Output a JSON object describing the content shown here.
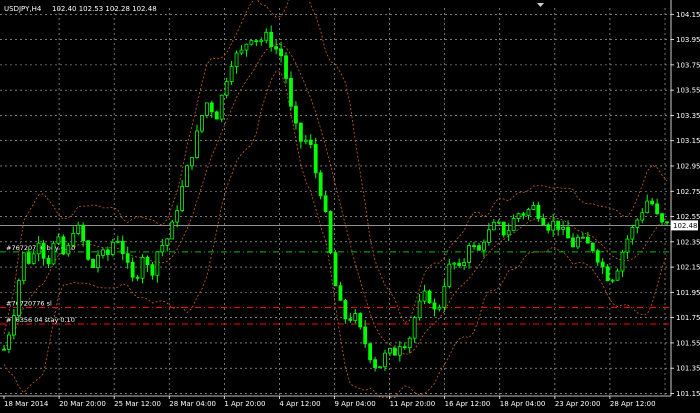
{
  "header": {
    "symbol": "USDJPY,H4",
    "ohlc": "102.40 102.53 102.28 102.48"
  },
  "colors": {
    "background": "#000000",
    "grid": "#bfbfbf",
    "candle": "#00ff00",
    "bands": "#c8641e",
    "bid_line": "#c0c0c0",
    "buy_order": "#00c000",
    "stop_order": "#ff0000",
    "current_price_bg": "#ffffff"
  },
  "icons": {
    "scroll_marker": "triangle-down-icon"
  },
  "orders": [
    {
      "label": "#76720776 buy 0.10",
      "price": 102.27,
      "kind": "buy"
    },
    {
      "label": "#76720776 sl",
      "price": 101.83,
      "kind": "sl"
    },
    {
      "label": "#76356 04 stay 0.10",
      "price": 101.7,
      "kind": "stop"
    }
  ],
  "current_price": {
    "label": "102.48",
    "value": 102.48
  },
  "chart_data": {
    "type": "candlestick",
    "title": "USDJPY,H4",
    "ylim": [
      101.13,
      104.2
    ],
    "y_ticks": [
      "104.15",
      "103.95",
      "103.75",
      "103.55",
      "103.35",
      "103.15",
      "102.95",
      "102.75",
      "102.55",
      "102.35",
      "102.15",
      "101.95",
      "101.75",
      "101.55",
      "101.35",
      "101.15"
    ],
    "x_ticks": [
      "18 Mar 2014",
      "20 Mar 20:00",
      "25 Mar 12:00",
      "28 Mar 04:00",
      "1 Apr 20:00",
      "4 Apr 12:00",
      "9 Apr 04:00",
      "11 Apr 20:00",
      "16 Apr 12:00",
      "18 Apr 04:00",
      "23 Apr 20:00",
      "28 Apr 12:00"
    ],
    "close_path": [
      [
        0,
        101.5
      ],
      [
        3,
        101.6
      ],
      [
        6,
        101.7
      ],
      [
        10,
        101.9
      ],
      [
        14,
        102.2
      ],
      [
        18,
        102.3
      ],
      [
        22,
        102.1
      ],
      [
        26,
        102.4
      ],
      [
        30,
        102.35
      ],
      [
        34,
        102.15
      ],
      [
        38,
        102.25
      ],
      [
        42,
        102.4
      ],
      [
        46,
        102.3
      ],
      [
        50,
        102.2
      ],
      [
        54,
        102.4
      ],
      [
        58,
        102.5
      ],
      [
        62,
        102.4
      ],
      [
        66,
        102.3
      ],
      [
        70,
        102.1
      ],
      [
        74,
        102.2
      ],
      [
        78,
        102.3
      ],
      [
        82,
        102.2
      ],
      [
        86,
        102.3
      ],
      [
        90,
        102.4
      ],
      [
        94,
        102.35
      ],
      [
        98,
        102.2
      ],
      [
        102,
        102.1
      ],
      [
        106,
        102.0
      ],
      [
        110,
        102.2
      ],
      [
        114,
        102.3
      ],
      [
        118,
        102.0
      ],
      [
        122,
        102.25
      ],
      [
        126,
        102.3
      ],
      [
        130,
        102.35
      ],
      [
        134,
        102.4
      ],
      [
        138,
        102.55
      ],
      [
        142,
        102.7
      ],
      [
        146,
        102.85
      ],
      [
        150,
        103.0
      ],
      [
        154,
        103.1
      ],
      [
        158,
        103.3
      ],
      [
        162,
        103.4
      ],
      [
        166,
        103.5
      ],
      [
        170,
        103.3
      ],
      [
        174,
        103.4
      ],
      [
        178,
        103.6
      ],
      [
        182,
        103.7
      ],
      [
        186,
        103.85
      ],
      [
        190,
        103.8
      ],
      [
        194,
        103.9
      ],
      [
        198,
        103.95
      ],
      [
        202,
        104.0
      ],
      [
        206,
        103.9
      ],
      [
        210,
        104.0
      ],
      [
        214,
        103.95
      ],
      [
        218,
        103.9
      ],
      [
        222,
        103.85
      ],
      [
        226,
        103.8
      ],
      [
        230,
        103.5
      ],
      [
        234,
        103.3
      ],
      [
        238,
        103.2
      ],
      [
        242,
        103.1
      ],
      [
        246,
        103.2
      ],
      [
        250,
        103.0
      ],
      [
        254,
        102.8
      ],
      [
        258,
        102.7
      ],
      [
        262,
        102.4
      ],
      [
        266,
        102.1
      ],
      [
        270,
        101.9
      ],
      [
        274,
        101.8
      ],
      [
        278,
        101.7
      ],
      [
        282,
        101.8
      ],
      [
        286,
        101.7
      ],
      [
        290,
        101.6
      ],
      [
        294,
        101.5
      ],
      [
        298,
        101.4
      ],
      [
        302,
        101.35
      ],
      [
        306,
        101.4
      ],
      [
        310,
        101.5
      ],
      [
        314,
        101.45
      ],
      [
        318,
        101.5
      ],
      [
        322,
        101.6
      ],
      [
        326,
        101.5
      ],
      [
        330,
        101.7
      ],
      [
        334,
        101.8
      ],
      [
        338,
        101.9
      ],
      [
        342,
        101.95
      ],
      [
        346,
        101.85
      ],
      [
        350,
        101.75
      ],
      [
        354,
        101.95
      ],
      [
        358,
        102.1
      ],
      [
        362,
        102.2
      ],
      [
        366,
        102.15
      ],
      [
        370,
        102.1
      ],
      [
        374,
        102.3
      ],
      [
        378,
        102.4
      ],
      [
        382,
        102.2
      ],
      [
        386,
        102.35
      ],
      [
        390,
        102.4
      ],
      [
        394,
        102.45
      ],
      [
        398,
        102.5
      ],
      [
        402,
        102.45
      ],
      [
        406,
        102.4
      ],
      [
        410,
        102.5
      ],
      [
        414,
        102.55
      ],
      [
        418,
        102.6
      ],
      [
        422,
        102.55
      ],
      [
        426,
        102.65
      ],
      [
        430,
        102.6
      ],
      [
        434,
        102.55
      ],
      [
        438,
        102.5
      ],
      [
        442,
        102.45
      ],
      [
        446,
        102.55
      ],
      [
        450,
        102.4
      ],
      [
        454,
        102.45
      ],
      [
        458,
        102.3
      ],
      [
        462,
        102.35
      ],
      [
        466,
        102.4
      ],
      [
        470,
        102.3
      ],
      [
        474,
        102.35
      ],
      [
        478,
        102.25
      ],
      [
        482,
        102.2
      ],
      [
        486,
        102.1
      ],
      [
        490,
        102.05
      ],
      [
        494,
        102.1
      ],
      [
        498,
        102.2
      ],
      [
        502,
        102.35
      ],
      [
        506,
        102.4
      ],
      [
        510,
        102.5
      ],
      [
        514,
        102.55
      ],
      [
        518,
        102.65
      ],
      [
        522,
        102.7
      ],
      [
        526,
        102.6
      ],
      [
        530,
        102.5
      ],
      [
        534,
        102.48
      ]
    ]
  }
}
